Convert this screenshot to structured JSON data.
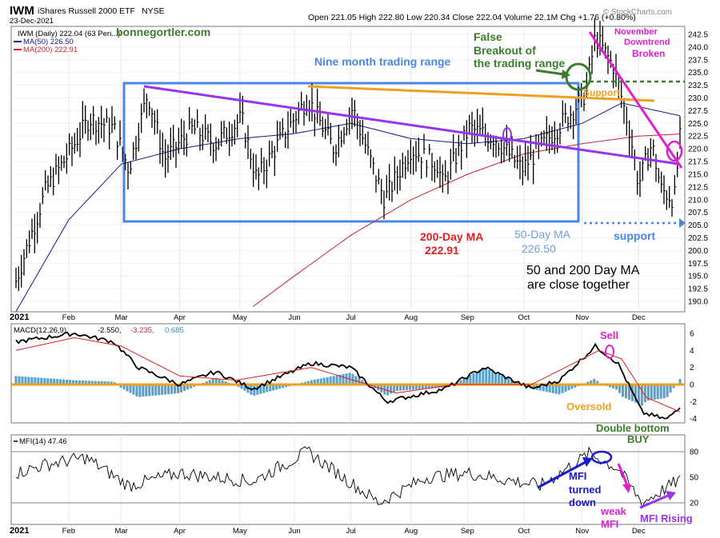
{
  "header": {
    "ticker": "IWM",
    "name": "iShares Russell 2000 ETF",
    "exchange": "NYSE",
    "date": "23-Dec-2021",
    "ohlc": "Open 221.05  High 222.80  Low 220.34  Close 222.04  Volume 22.1M  Chg +1.76 (+0.80%)",
    "brand": "© StockCharts.com"
  },
  "price_panel": {
    "legend_main": "IWM (Daily) 222.04 (63 Peri...)",
    "legend_ma50": "MA(50) 226.50",
    "legend_ma200": "MA(200) 222.91",
    "watermark": "bonnegortler.com",
    "annotations": {
      "range": "Nine month trading range",
      "false1": "False",
      "false2": "Breakout of",
      "false3": "the trading range",
      "support_top": "Support",
      "nov1": "November",
      "nov2": "Downtrend",
      "nov3": "Broken",
      "ma200a": "200-Day MA",
      "ma200b": "222.91",
      "ma50a": "50-Day MA",
      "ma50b": "226.50",
      "support_bottom": "support",
      "close1": "50 and 200 Day MA",
      "close2": "are close together"
    }
  },
  "macd_panel": {
    "legend_name": "MACD(12,26,9)",
    "legend_v1": "-2.550,",
    "legend_v2": "-3.235,",
    "legend_v3": "0.685",
    "annotations": {
      "sell": "Sell",
      "oversold": "Oversold",
      "double1": "Double bottom",
      "double2": "BUY"
    }
  },
  "mfi_panel": {
    "legend": "MFI(14) 47.46",
    "annotations": {
      "turned1": "MFI",
      "turned2": "turned",
      "turned3": "down",
      "weak1": "weak",
      "weak2": "MFI",
      "rising": "MFI Rising"
    }
  },
  "colors": {
    "price": "#000000",
    "ma50": "#1a1a8c",
    "ma200": "#cc2233",
    "range_box": "#4a86e8",
    "trend_purple": "#9933ee",
    "orange": "#f0a020",
    "green": "#3a7d2a",
    "magenta": "#e020d0",
    "macd_hist": "#3a8fc0",
    "blue_arrow": "#1a1ad0"
  },
  "chart_data": [
    {
      "type": "line",
      "title": "IWM iShares Russell 2000 ETF NYSE (Daily)",
      "ylim": [
        187.5,
        245
      ],
      "y_ticks": [
        190,
        192.5,
        195,
        197.5,
        200,
        202.5,
        205,
        207.5,
        210,
        212.5,
        215,
        217.5,
        220,
        222.5,
        225,
        227.5,
        230,
        232.5,
        235,
        237.5,
        240,
        242.5
      ],
      "x_labels": [
        "2021",
        "Feb",
        "Mar",
        "Apr",
        "May",
        "Jun",
        "Jul",
        "Aug",
        "Sep",
        "Oct",
        "Nov",
        "Dec"
      ],
      "series": [
        {
          "name": "IWM",
          "x": [
            "Jan-4",
            "Jan-20",
            "Feb-1",
            "Feb-12",
            "Feb-25",
            "Mar-5",
            "Mar-15",
            "Mar-24",
            "Apr-8",
            "Apr-20",
            "May-4",
            "May-12",
            "May-25",
            "Jun-8",
            "Jun-22",
            "Jul-2",
            "Jul-14",
            "Jul-19",
            "Aug-2",
            "Aug-16",
            "Aug-19",
            "Sep-2",
            "Sep-16",
            "Sep-30",
            "Oct-14",
            "Oct-28",
            "Nov-3",
            "Nov-8",
            "Nov-18",
            "Nov-26",
            "Dec-1",
            "Dec-8",
            "Dec-13",
            "Dec-20",
            "Dec-23"
          ],
          "values": [
            194,
            212,
            219,
            226,
            224,
            216,
            231,
            218,
            224,
            221,
            226,
            214,
            222,
            230,
            220,
            228,
            215,
            210,
            220,
            217,
            213,
            224,
            222,
            216,
            222,
            228,
            231,
            242,
            236,
            224,
            213,
            221,
            212,
            210,
            222
          ]
        },
        {
          "name": "MA(50)",
          "x": [
            "Jan-4",
            "Feb-1",
            "Mar-1",
            "Apr-1",
            "May-3",
            "Jun-1",
            "Jul-1",
            "Aug-2",
            "Sep-1",
            "Oct-1",
            "Nov-1",
            "Nov-22",
            "Dec-23"
          ],
          "values": [
            188,
            206,
            217,
            220,
            222,
            223,
            225,
            222,
            221,
            222,
            225,
            229,
            226.5
          ]
        },
        {
          "name": "MA(200)",
          "x": [
            "May-10",
            "Jun-1",
            "Jul-1",
            "Aug-2",
            "Sep-1",
            "Oct-1",
            "Nov-1",
            "Dec-1",
            "Dec-23"
          ],
          "values": [
            189,
            195,
            203,
            210,
            215,
            219,
            221,
            222.5,
            222.91
          ]
        }
      ]
    },
    {
      "type": "line",
      "title": "MACD(12,26,9)",
      "ylim": [
        -5,
        7
      ],
      "y_ticks": [
        -4,
        -2,
        0,
        2,
        4,
        6
      ],
      "series": [
        {
          "name": "MACD",
          "x": [
            "Jan-4",
            "Feb-4",
            "Feb-25",
            "Mar-10",
            "Apr-1",
            "Apr-20",
            "May-10",
            "Jun-10",
            "Jul-1",
            "Jul-20",
            "Aug-20",
            "Sep-10",
            "Oct-5",
            "Oct-20",
            "Nov-8",
            "Nov-20",
            "Dec-3",
            "Dec-16",
            "Dec-23"
          ],
          "values": [
            5,
            6,
            5,
            2,
            0,
            1.5,
            -0.5,
            2.5,
            2,
            -2,
            -0.5,
            2,
            -0.5,
            0.5,
            4.5,
            2.5,
            -3.3,
            -4.1,
            -2.55
          ]
        },
        {
          "name": "Signal",
          "x": [
            "Jan-4",
            "Feb-4",
            "Mar-1",
            "Apr-1",
            "May-1",
            "Jun-10",
            "Jul-25",
            "Aug-25",
            "Oct-5",
            "Nov-10",
            "Nov-22",
            "Dec-5",
            "Dec-23"
          ],
          "values": [
            4,
            5.5,
            4.5,
            1,
            0.5,
            2,
            -1,
            0,
            0,
            4,
            3,
            -1.5,
            -3.2
          ]
        },
        {
          "name": "Histogram",
          "values": [
            0.685
          ]
        }
      ]
    },
    {
      "type": "line",
      "title": "MFI(14)",
      "ylim": [
        10,
        90
      ],
      "y_ticks": [
        20,
        50,
        80
      ],
      "series": [
        {
          "name": "MFI",
          "x": [
            "Jan-4",
            "Jan-20",
            "Feb-10",
            "Mar-5",
            "Apr-1",
            "May-10",
            "Jun-8",
            "Jul-16",
            "Aug-10",
            "Sep-1",
            "Oct-10",
            "Nov-5",
            "Nov-20",
            "Dec-3",
            "Dec-23"
          ],
          "values": [
            55,
            65,
            73,
            40,
            55,
            45,
            80,
            20,
            50,
            55,
            40,
            78,
            60,
            20,
            47.46
          ]
        }
      ]
    }
  ]
}
